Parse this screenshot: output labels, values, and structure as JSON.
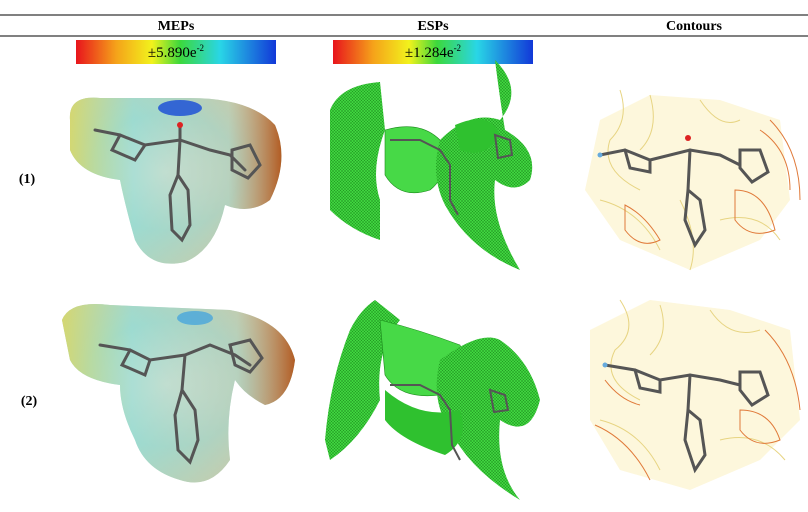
{
  "header": {
    "columns": [
      "MEPs",
      "ESPs",
      "Contours"
    ]
  },
  "scales": [
    {
      "base": "±5.890e",
      "exponent": "-2"
    },
    {
      "base": "±1.284e",
      "exponent": "-2"
    }
  ],
  "rows": [
    {
      "label": "(1)"
    },
    {
      "label": "(2)"
    }
  ]
}
